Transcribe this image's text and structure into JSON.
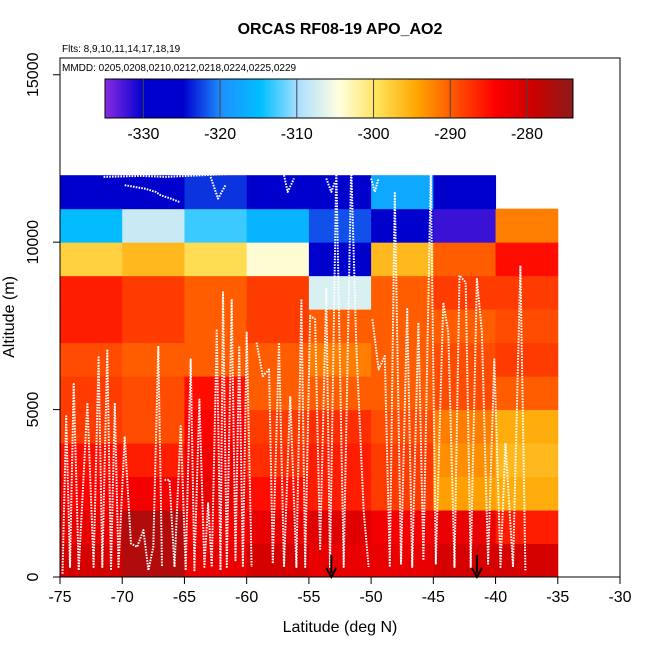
{
  "chart_data": {
    "type": "heatmap",
    "title": "ORCAS RF08-19 APO_AO2",
    "flights_note": "Flts: 8,9,10,11,14,17,18,19",
    "dates_note": "MMDD: 0205,0208,0210,0212,0218,0224,0225,0229",
    "xlabel": "Latitude (deg N)",
    "ylabel": "Altitude (m)",
    "xlim": [
      -75,
      -30
    ],
    "ylim": [
      0,
      15500
    ],
    "x_ticks": [
      -75,
      -70,
      -65,
      -60,
      -55,
      -50,
      -45,
      -40,
      -35,
      -30
    ],
    "y_ticks": [
      0,
      5000,
      10000,
      15000
    ],
    "colorbar": {
      "range": [
        -335,
        -274
      ],
      "ticks": [
        -330,
        -320,
        -310,
        -300,
        -290,
        -280
      ],
      "colors": [
        "#8a2be2",
        "#0000cd",
        "#0000cd",
        "#1e90ff",
        "#00bfff",
        "#b0e0ff",
        "#ffffe0",
        "#ffe25a",
        "#ffa500",
        "#ff5000",
        "#ff0000",
        "#cc0000",
        "#8b1a1a"
      ]
    },
    "grid_x_edges": [
      -75,
      -70,
      -65,
      -60,
      -55,
      -50,
      -45,
      -40,
      -35
    ],
    "grid_y_edges": [
      0,
      1000,
      2000,
      3000,
      4000,
      5000,
      6000,
      7000,
      8000,
      9000,
      10000,
      11000,
      12000
    ],
    "cells": [
      [
        -280,
        -277,
        -282,
        -280,
        -282,
        -282,
        -280,
        -280
      ],
      [
        -282,
        -277,
        -283,
        -282,
        -281,
        -283,
        -282,
        -286
      ],
      [
        -284,
        -283,
        -282,
        -285,
        -286,
        -288,
        -294,
        -295
      ],
      [
        -285,
        -286,
        -283,
        -287,
        -286,
        -288,
        -293,
        -296
      ],
      [
        -288,
        -289,
        -284,
        -288,
        -287,
        -289,
        -292,
        -295
      ],
      [
        -288,
        -289,
        -285,
        -290,
        -290,
        -290,
        -289,
        -290
      ],
      [
        -289,
        -290,
        -290,
        -290,
        -292,
        -290,
        -289,
        -288
      ],
      [
        -286,
        -288,
        -290,
        -288,
        -290,
        -290,
        -290,
        -289
      ],
      [
        -286,
        -288,
        -290,
        -288,
        -307,
        -290,
        -288,
        -288
      ],
      [
        -298,
        -296,
        -299,
        -304,
        -327,
        -296,
        -290,
        -285
      ],
      [
        -315,
        -308,
        -313,
        -316,
        -322,
        -327,
        -332,
        -292
      ],
      [
        -325,
        -325,
        -323,
        -326,
        -326,
        -317,
        -326,
        null
      ]
    ],
    "markers_lat": [
      -53.2,
      -41.5
    ],
    "flight_tracks": [
      [
        [
          -74.8,
          100
        ],
        [
          -74.5,
          4800
        ],
        [
          -74.2,
          300
        ],
        [
          -73.9,
          5800
        ],
        [
          -73.5,
          200
        ],
        [
          -72.8,
          5200
        ],
        [
          -72.3,
          300
        ],
        [
          -71.9,
          6600
        ],
        [
          -71.6,
          300
        ],
        [
          -71.2,
          6800
        ],
        [
          -70.9,
          200
        ],
        [
          -70.6,
          5200
        ],
        [
          -70.3,
          300
        ],
        [
          -69.8,
          4200
        ],
        [
          -69.3,
          1000
        ],
        [
          -68.8,
          900
        ],
        [
          -68.3,
          1400
        ],
        [
          -67.9,
          200
        ],
        [
          -67.5,
          900
        ],
        [
          -67.1,
          6900
        ],
        [
          -66.8,
          300
        ]
      ],
      [
        [
          -66.6,
          2900
        ],
        [
          -66.2,
          2900
        ],
        [
          -65.8,
          300
        ],
        [
          -65.3,
          4500
        ],
        [
          -64.9,
          200
        ],
        [
          -64.5,
          6500
        ],
        [
          -64.2,
          200
        ],
        [
          -63.8,
          5300
        ],
        [
          -63.4,
          300
        ],
        [
          -63.1,
          2200
        ],
        [
          -62.8,
          300
        ],
        [
          -62.4,
          7400
        ],
        [
          -62.1,
          200
        ],
        [
          -61.9,
          8500
        ],
        [
          -61.6,
          300
        ],
        [
          -61.2,
          8300
        ],
        [
          -60.9,
          500
        ],
        [
          -60.6,
          6900
        ],
        [
          -60.3,
          300
        ],
        [
          -60.0,
          7300
        ],
        [
          -59.6,
          300
        ]
      ],
      [
        [
          -59.2,
          7000
        ],
        [
          -58.7,
          6000
        ],
        [
          -58.2,
          6200
        ],
        [
          -57.9,
          400
        ],
        [
          -57.4,
          7000
        ],
        [
          -57.0,
          300
        ],
        [
          -56.5,
          5400
        ],
        [
          -56.0,
          300
        ],
        [
          -55.6,
          8300
        ],
        [
          -55.3,
          300
        ],
        [
          -54.9,
          7800
        ],
        [
          -54.5,
          7700
        ],
        [
          -54.1,
          800
        ],
        [
          -53.6,
          8600
        ],
        [
          -53.3,
          300
        ],
        [
          -52.8,
          12200
        ],
        [
          -52.2,
          300
        ],
        [
          -51.6,
          12300
        ],
        [
          -51.2,
          7000
        ],
        [
          -50.6,
          2000
        ],
        [
          -50.2,
          300
        ]
      ],
      [
        [
          -49.9,
          7700
        ],
        [
          -49.4,
          6200
        ],
        [
          -48.9,
          6600
        ],
        [
          -48.5,
          300
        ],
        [
          -48.1,
          11500
        ],
        [
          -47.6,
          400
        ],
        [
          -47.1,
          8000
        ],
        [
          -46.7,
          300
        ],
        [
          -46.2,
          7600
        ],
        [
          -45.8,
          500
        ],
        [
          -45.2,
          12100
        ],
        [
          -44.8,
          400
        ],
        [
          -44.2,
          8200
        ],
        [
          -43.8,
          7300
        ],
        [
          -43.3,
          300
        ],
        [
          -42.9,
          9000
        ],
        [
          -42.4,
          8800
        ],
        [
          -42.0,
          300
        ],
        [
          -41.5,
          8900
        ],
        [
          -41.1,
          7300
        ],
        [
          -40.6,
          400
        ],
        [
          -40.1,
          6500
        ],
        [
          -39.6,
          300
        ],
        [
          -39.2,
          4000
        ],
        [
          -38.6,
          300
        ],
        [
          -38.0,
          9300
        ],
        [
          -37.6,
          200
        ]
      ]
    ],
    "upper_tracks": [
      [
        [
          -71.5,
          11950
        ],
        [
          -68.5,
          11980
        ],
        [
          -66.5,
          11950
        ],
        [
          -63.5,
          12000
        ],
        [
          -60.5,
          12050
        ],
        [
          -58.5,
          12100
        ],
        [
          -56.5,
          12080
        ]
      ],
      [
        [
          -69.8,
          11700
        ],
        [
          -68.2,
          11600
        ],
        [
          -67.3,
          11500
        ],
        [
          -66.9,
          11400
        ],
        [
          -66.1,
          11300
        ],
        [
          -65.4,
          11200
        ]
      ],
      [
        [
          -62.9,
          11950
        ],
        [
          -62.3,
          11300
        ],
        [
          -61.7,
          11700
        ]
      ],
      [
        [
          -57.0,
          12000
        ],
        [
          -56.7,
          11500
        ],
        [
          -56.2,
          11900
        ]
      ],
      [
        [
          -53.6,
          11900
        ],
        [
          -53.2,
          11500
        ],
        [
          -52.9,
          11800
        ]
      ],
      [
        [
          -50.0,
          11900
        ],
        [
          -49.7,
          11500
        ],
        [
          -49.4,
          11900
        ]
      ]
    ]
  }
}
